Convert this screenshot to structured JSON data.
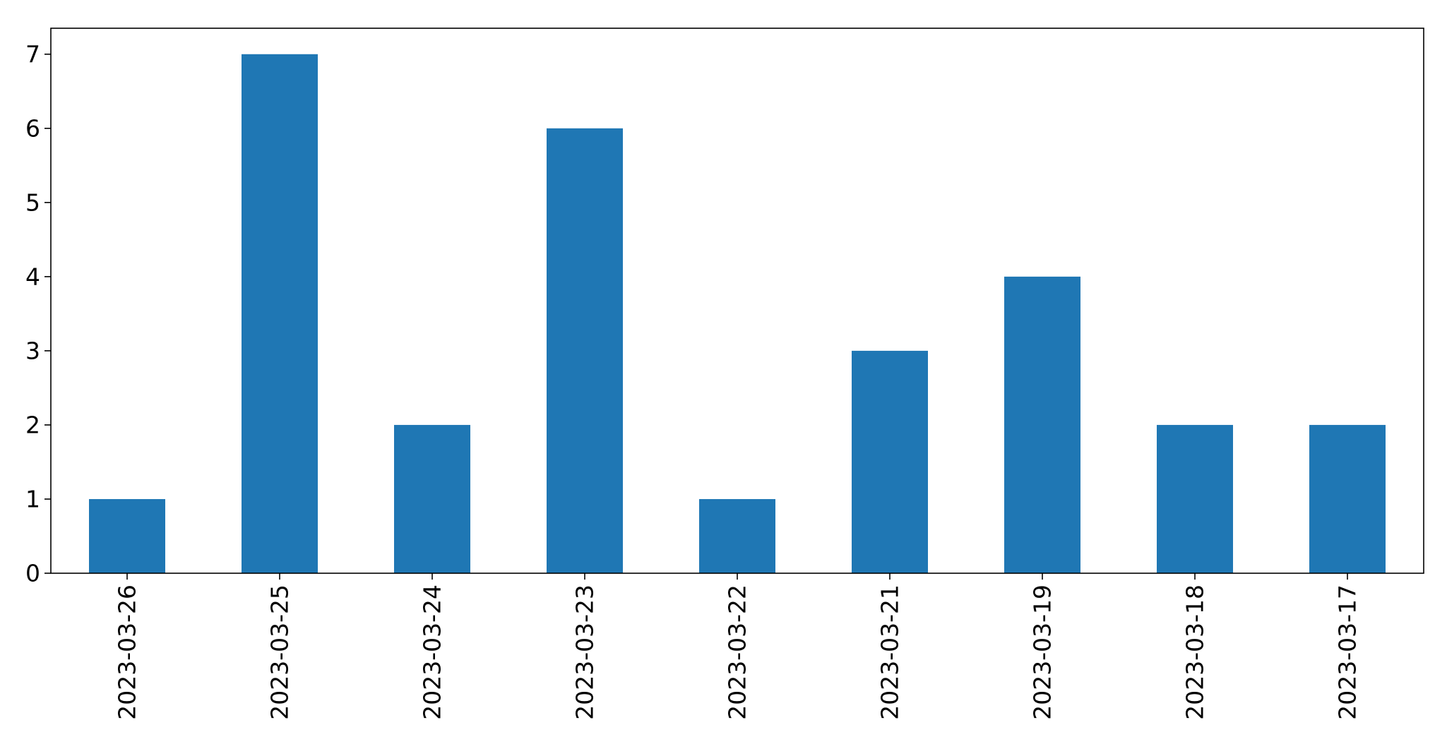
{
  "chart_data": {
    "type": "bar",
    "title": "",
    "xlabel": "",
    "ylabel": "",
    "categories": [
      "2023-03-26",
      "2023-03-25",
      "2023-03-24",
      "2023-03-23",
      "2023-03-22",
      "2023-03-21",
      "2023-03-19",
      "2023-03-18",
      "2023-03-17"
    ],
    "values": [
      1,
      7,
      2,
      6,
      1,
      3,
      4,
      2,
      2
    ],
    "ylim": [
      0,
      7.35
    ],
    "yticks": [
      0,
      1,
      2,
      3,
      4,
      5,
      6,
      7
    ],
    "grid": false,
    "legend": "none",
    "bar_color": "#1f77b4",
    "axis_color": "#000000"
  }
}
